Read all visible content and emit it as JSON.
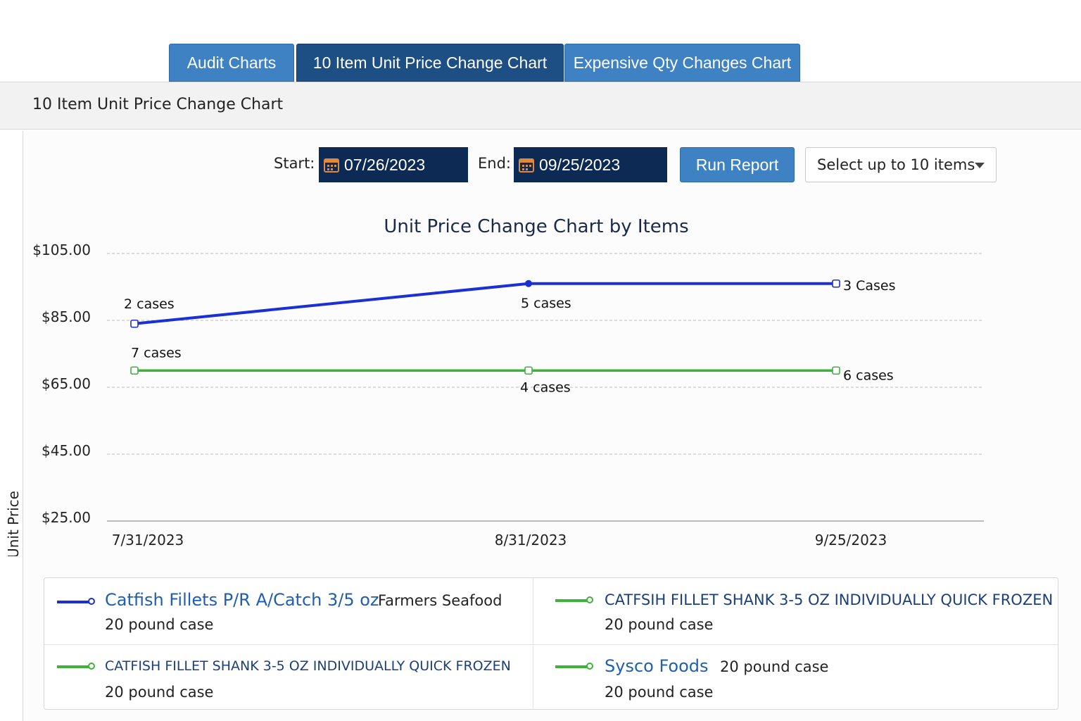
{
  "tabs": [
    {
      "label": "Audit Charts",
      "active": false
    },
    {
      "label": "10 Item Unit Price Change Chart",
      "active": true
    },
    {
      "label": "Expensive Qty Changes Chart",
      "active": false
    }
  ],
  "section_title": "10 Item Unit Price Change Chart",
  "controls": {
    "start_label": "Start:",
    "start_date": "07/26/2023",
    "end_label": "End:",
    "end_date": "09/25/2023",
    "run_label": "Run Report",
    "select_label": "Select up to 10 items",
    "calendar_icon": "calendar-icon"
  },
  "chart_data": {
    "type": "line",
    "title": "Unit Price Change Chart by Items",
    "ylabel": "Unit Price",
    "xlabel": "",
    "categories": [
      "7/31/2023",
      "8/31/2023",
      "9/25/2023"
    ],
    "yticks": [
      "$105.00",
      "$85.00",
      "$65.00",
      "$45.00",
      "$25.00"
    ],
    "ytick_values": [
      105,
      85,
      65,
      45,
      25
    ],
    "ylim": [
      25,
      105
    ],
    "grid": true,
    "series": [
      {
        "values": [
          84,
          96,
          96
        ],
        "labels": [
          "2 cases",
          "5 cases",
          "3 Cases"
        ],
        "color": "#1a2fd6"
      },
      {
        "values": [
          70,
          70,
          70
        ],
        "labels": [
          "7 cases",
          "4 cases",
          "6 cases"
        ],
        "color": "#3db33a"
      }
    ]
  },
  "legend": [
    {
      "name": "Catfish Fillets P/R A/Catch 3/5 oz",
      "vendor": "Farmers Seafood",
      "pack": "20 pound case",
      "color": "#1a2fd6"
    },
    {
      "name": "CATFSIH FILLET SHANK 3-5 OZ INDIVIDUALLY QUICK FROZEN",
      "vendor": "",
      "pack": "20 pound case",
      "color": "#3db33a"
    },
    {
      "name": "CATFISH FILLET SHANK 3-5 OZ INDIVIDUALLY QUICK FROZEN",
      "vendor": "",
      "pack": "20 pound case",
      "color": "#3db33a"
    },
    {
      "name": "Sysco Foods",
      "vendor": "20 pound case",
      "pack": "20 pound case",
      "color": "#3db33a"
    }
  ]
}
